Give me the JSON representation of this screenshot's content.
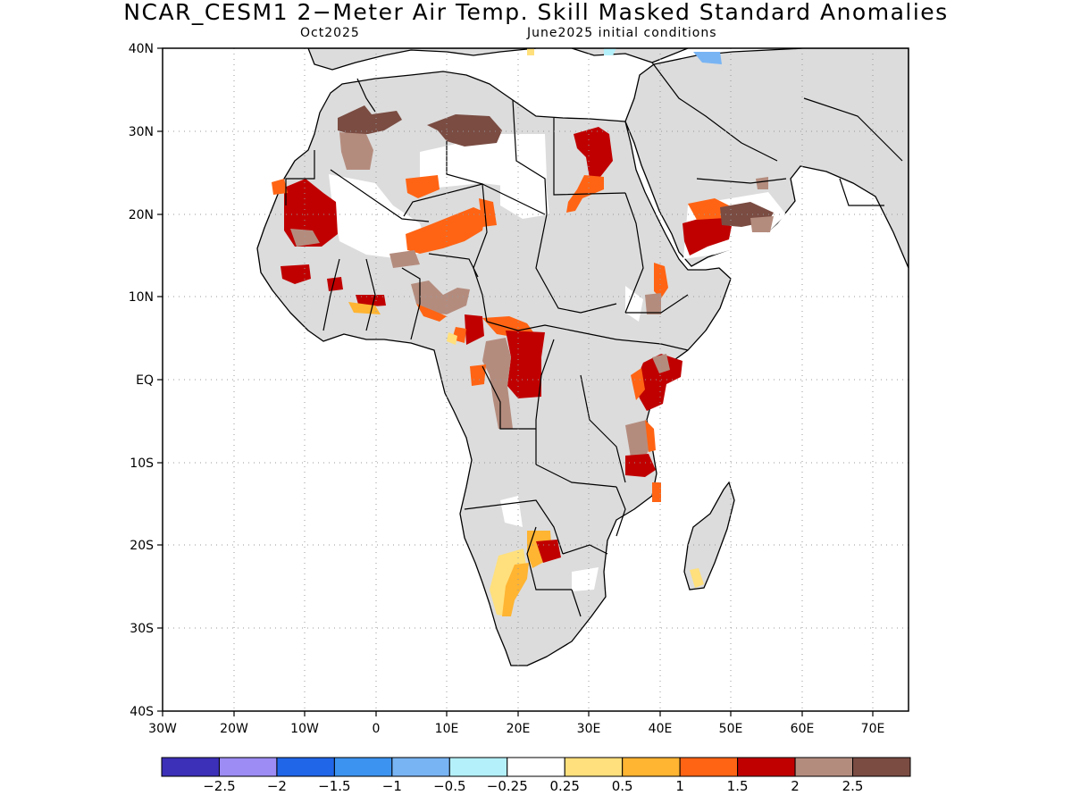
{
  "title": "NCAR_CESM1 2−Meter Air Temp. Skill Masked Standard Anomalies",
  "subtitle_left": "Oct2025",
  "subtitle_right": "June2025 initial conditions",
  "axes": {
    "lon_ticks": [
      "30W",
      "20W",
      "10W",
      "0",
      "10E",
      "20E",
      "30E",
      "40E",
      "50E",
      "60E",
      "70E"
    ],
    "lat_ticks": [
      "40N",
      "30N",
      "20N",
      "10N",
      "EQ",
      "10S",
      "20S",
      "30S",
      "40S"
    ],
    "lon_range": [
      -30,
      75
    ],
    "lat_range": [
      -40,
      40
    ],
    "grid": "dotted"
  },
  "colors": {
    "land_masked": "#dcdcdc",
    "coastline": "#000000",
    "grid": "#999999"
  },
  "colorbar": {
    "colors": [
      "#3c2fb8",
      "#9c8cf4",
      "#2066e8",
      "#3c93f0",
      "#78b4f4",
      "#b4f0fa",
      "#ffffff",
      "#ffe07c",
      "#ffb432",
      "#ff6414",
      "#c00000",
      "#b48c7e",
      "#7a4c42"
    ],
    "labels": [
      "−2.5",
      "−2",
      "−1.5",
      "−1",
      "−0.5",
      "−0.25",
      "0.25",
      "0.5",
      "1",
      "1.5",
      "2",
      "2.5"
    ]
  }
}
